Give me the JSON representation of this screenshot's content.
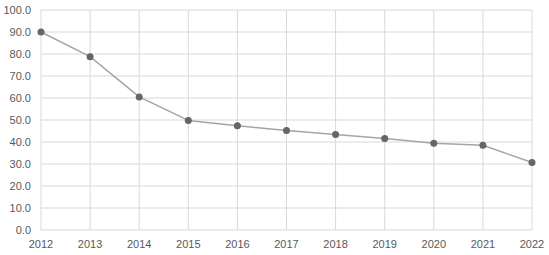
{
  "chart_data": {
    "type": "line",
    "categories": [
      "2012",
      "2013",
      "2014",
      "2015",
      "2016",
      "2017",
      "2018",
      "2019",
      "2020",
      "2021",
      "2022"
    ],
    "values": [
      90.0,
      78.8,
      60.5,
      49.8,
      47.4,
      45.2,
      43.4,
      41.6,
      39.4,
      38.5,
      30.7
    ],
    "color": "#a5a5a5",
    "marker": "circle",
    "ylim": [
      0,
      100
    ],
    "yticks": [
      {
        "value": 0,
        "label": "0.0"
      },
      {
        "value": 10,
        "label": "10.0"
      },
      {
        "value": 20,
        "label": "20.0"
      },
      {
        "value": 30,
        "label": "30.0"
      },
      {
        "value": 40,
        "label": "40.0"
      },
      {
        "value": 50,
        "label": "50.0"
      },
      {
        "value": 60,
        "label": "60.0"
      },
      {
        "value": 70,
        "label": "70.0"
      },
      {
        "value": 80,
        "label": "80.0"
      },
      {
        "value": 90,
        "label": "90.0"
      },
      {
        "value": 100,
        "label": "100.0"
      }
    ],
    "grid": true
  }
}
